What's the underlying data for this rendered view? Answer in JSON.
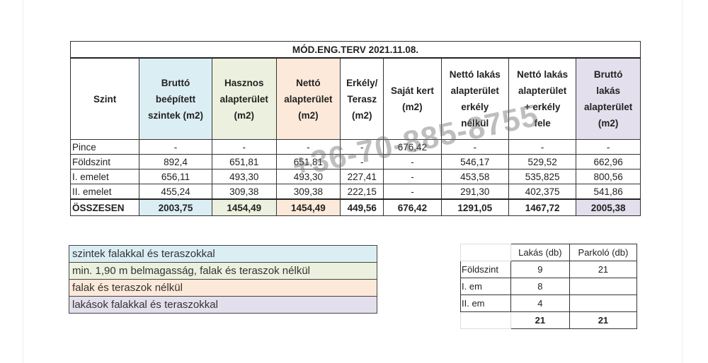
{
  "title": "MÓD.ENG.TERV 2021.11.08.",
  "headers": [
    "Szint",
    "Bruttó\nbeépített\nszintek (m2)",
    "Hasznos\nalapterület\n(m2)",
    "Nettó\nalapterület\n(m2)",
    "Erkély/\nTerasz\n(m2)",
    "Saját kert\n(m2)",
    "Nettó lakás\nalapterület\nerkély\nnélkül",
    "Nettó lakás\nalapterület\n+ erkély\nfele",
    "Bruttó\nlakás\nalapterület\n(m2)"
  ],
  "rows": [
    [
      "Pince",
      "-",
      "-",
      "-",
      "-",
      "676,42",
      "-",
      "-",
      "-"
    ],
    [
      "Földszint",
      "892,4",
      "651,81",
      "651,81",
      "-",
      "-",
      "546,17",
      "529,52",
      "662,96"
    ],
    [
      "I. emelet",
      "656,11",
      "493,30",
      "493,30",
      "227,41",
      "-",
      "453,58",
      "535,825",
      "800,56"
    ],
    [
      "II. emelet",
      "455,24",
      "309,38",
      "309,38",
      "222,15",
      "-",
      "291,30",
      "402,375",
      "541,86"
    ]
  ],
  "total": [
    "ÖSSZESEN",
    "2003,75",
    "1454,49",
    "1454,49",
    "449,56",
    "676,42",
    "1291,05",
    "1467,72",
    "2005,38"
  ],
  "legend": [
    "szintek falakkal és teraszokkal",
    "min. 1,90 m belmagasság, falak és teraszok nélkül",
    "falak és teraszok nélkül",
    "lakások falakkal és teraszokkal"
  ],
  "colors": {
    "blue": "#dbeef4",
    "green": "#ebf1de",
    "orange": "#fde9d9",
    "purple": "#e4dfec"
  },
  "summary": {
    "headers": [
      "",
      "Lakás (db)",
      "Parkoló (db)"
    ],
    "rows": [
      [
        "Földszint",
        "9",
        "21"
      ],
      [
        "I. em",
        "8",
        ""
      ],
      [
        "II. em",
        "4",
        ""
      ]
    ],
    "total": [
      "",
      "21",
      "21"
    ]
  },
  "watermark": "+36-70-885-8755"
}
